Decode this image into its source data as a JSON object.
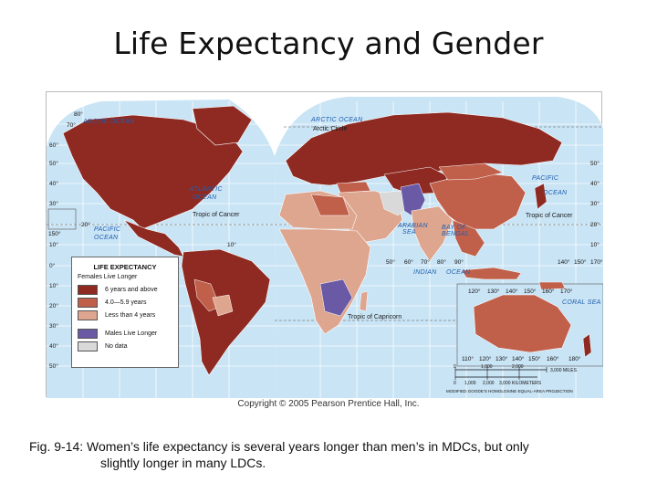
{
  "title": "Life Expectancy and Gender",
  "map": {
    "ocean_labels": {
      "arctic_left": "ARCTIC OCEAN",
      "arctic_right": "ARCTIC OCEAN",
      "atlantic_1": "ATLANTIC",
      "atlantic_2": "OCEAN",
      "pacific_left_1": "PACIFIC",
      "pacific_left_2": "OCEAN",
      "pacific_right_1": "PACIFIC",
      "pacific_right_2": "OCEAN",
      "indian_1": "INDIAN",
      "indian_2": "OCEAN",
      "arabian_1": "ARABIAN",
      "arabian_2": "SEA",
      "bengal_1": "BAY OF",
      "bengal_2": "BENGAL",
      "coral": "CORAL SEA"
    },
    "line_labels": {
      "arctic_circle": "Arctic Circle",
      "cancer_left": "Tropic of Cancer",
      "cancer_right": "Tropic of Cancer",
      "capricorn": "Tropic of Capricorn"
    },
    "lat_labels": [
      "80°",
      "70°",
      "60°",
      "50°",
      "40°",
      "30°",
      "20°",
      "10°",
      "0°",
      "10°",
      "20°",
      "30°",
      "40°",
      "50°"
    ],
    "lon_labels_top": [
      "150°",
      "10°",
      "50°",
      "60°",
      "70°",
      "80°",
      "90°",
      "140°",
      "150°",
      "170°"
    ],
    "inset_lon_labels": [
      "120°",
      "130°",
      "140°",
      "150°",
      "160°",
      "170°"
    ],
    "inset_lon_bottom": [
      "110°",
      "120°",
      "130°",
      "140°",
      "150°",
      "160°",
      "180°"
    ],
    "region_categories": {
      "north_america": "6 years and above",
      "south_america": "6 years and above",
      "europe_russia": "6 years and above",
      "central_america": "6 years and above",
      "africa": "Less than 4 years",
      "middle_east": "4.0—5.9 years",
      "south_asia": "Less than 4 years",
      "china": "4.0—5.9 years",
      "southeast_asia": "4.0—5.9 years",
      "australia": "4.0—5.9 years",
      "southern_africa_males": "Males Live Longer",
      "afghanistan_pakistan": "Males Live Longer",
      "iran": "No data"
    }
  },
  "legend": {
    "title": "LIFE EXPECTANCY",
    "subtitle": "Females Live Longer",
    "items": [
      {
        "label": "6 years and above",
        "color": "#8e2a22"
      },
      {
        "label": "4.0—5.9 years",
        "color": "#c0604b"
      },
      {
        "label": "Less than 4 years",
        "color": "#dea58f"
      },
      {
        "label": "Males Live Longer",
        "color": "#6a5aa6"
      },
      {
        "label": "No data",
        "color": "#d9d9d9"
      }
    ]
  },
  "scale": {
    "miles": "3,000 MILES",
    "km": "3,000 KILOMETERS",
    "ticks_top": [
      "0",
      "1,000",
      "2,000"
    ],
    "ticks_bottom": [
      "0",
      "1,000",
      "2,000"
    ],
    "projection": "MODIFIED GOODE'S HOMOLOSINE EQUAL-AREA PROJECTION"
  },
  "copyright": "Copyright © 2005 Pearson Prentice Hall, Inc.",
  "caption": {
    "line1": "Fig. 9-14: Women’s life expectancy is several years longer than men’s in MDCs, but only",
    "line2": "slightly longer in many LDCs."
  },
  "colors": {
    "ocean": "#c9e4f5",
    "grid": "#ffffff",
    "high": "#8e2a22",
    "mid": "#c0604b",
    "low": "#dea58f",
    "males": "#6a5aa6",
    "nodata": "#d9d9d9"
  }
}
